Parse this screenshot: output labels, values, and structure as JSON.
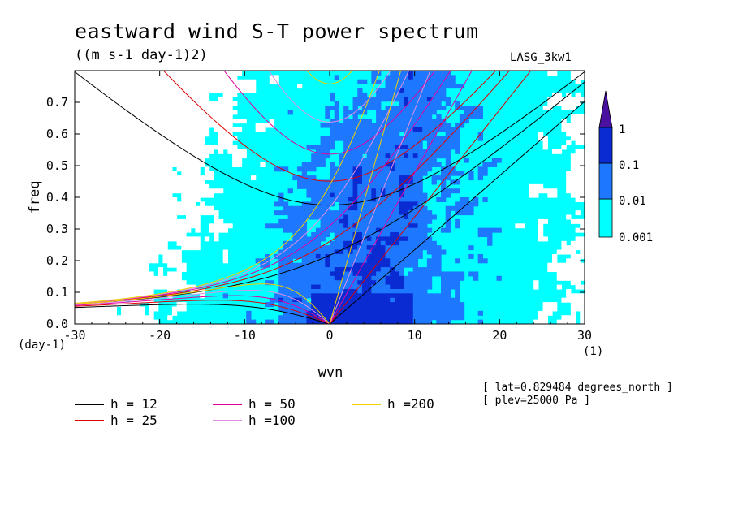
{
  "header": {
    "title": "eastward wind S-T power spectrum",
    "subtitle": "((m s-1 day-1)2)",
    "model_label": "LASG_3kw1"
  },
  "info": {
    "lat": "[ lat=0.829484 degrees_north ]",
    "plev": "[ plev=25000 Pa ]"
  },
  "colors": {
    "white": "#ffffff",
    "cyan": "#00ffff",
    "mid_blue": "#1e78ff",
    "dark_blue": "#0a2ad2",
    "deep_blue": "#1a1096",
    "purple": "#4a10a0"
  },
  "chart_data": {
    "type": "heatmap",
    "title": "eastward wind S-T power spectrum",
    "subtitle": "((m s-1 day-1)2)",
    "xlabel": "wvn",
    "ylabel": "freq",
    "x_unit": "(1)",
    "y_unit": "(day-1)",
    "xlim": [
      -30,
      30
    ],
    "ylim": [
      0,
      0.8
    ],
    "x_ticks": [
      "-30",
      "-20",
      "-10",
      "0",
      "10",
      "20",
      "30"
    ],
    "y_ticks": [
      "0.0",
      "0.1",
      "0.2",
      "0.3",
      "0.4",
      "0.5",
      "0.6",
      "0.7"
    ],
    "colorbar": {
      "levels": [
        "0.001",
        "0.01",
        "0.1",
        "1"
      ],
      "colors": [
        "#00ffff",
        "#1e78ff",
        "#0a2ad2",
        "#1a1096"
      ]
    },
    "dispersion_curves": [
      {
        "label": "h = 12",
        "h": 12,
        "color": "#000000"
      },
      {
        "label": "h = 25",
        "h": 25,
        "color": "#e00000"
      },
      {
        "label": "h = 50",
        "h": 50,
        "color": "#e000a0"
      },
      {
        "label": "h =100",
        "h": 100,
        "color": "#e090e0"
      },
      {
        "label": "h =200",
        "h": 200,
        "color": "#f0d000"
      }
    ]
  }
}
